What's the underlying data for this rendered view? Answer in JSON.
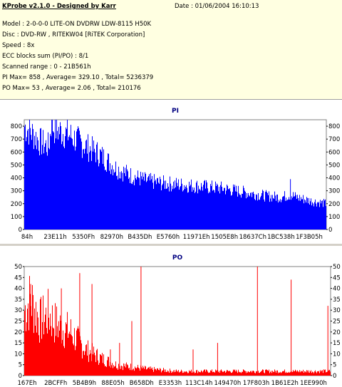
{
  "header": {
    "app_title": "KProbe v2.1.0 - Designed by Karr",
    "date": "Date : 01/06/2004 16:10:13",
    "model": "Model : 2-0-0-0 LITE-ON DVDRW LDW-8115   H50K",
    "disc": "Disc : DVD-RW , RITEKW04 [RiTEK Corporation]",
    "speed": "Speed : 8x",
    "ecc": "ECC blocks sum (PI/PO) : 8/1",
    "range": "Scanned range : 0 - 21B561h",
    "pi_stats": "PI Max= 858 , Average= 329.10 , Total= 5236379",
    "po_stats": "PO Max= 53 , Average= 2.06 , Total= 210176"
  },
  "colors": {
    "pi": "#0000ff",
    "po": "#ff0000",
    "title": "#000080",
    "header_bg": "#ffffe1"
  },
  "chart_data": [
    {
      "type": "area",
      "title": "PI",
      "ylim": [
        0,
        850
      ],
      "yticks": [
        0,
        100,
        200,
        300,
        400,
        500,
        600,
        700,
        800
      ],
      "xtick_labels": [
        "84h",
        "23E11h",
        "5350Fh",
        "82970h",
        "B435Dh",
        "E5760h",
        "11971Eh",
        "1505E8h",
        "18637Ch",
        "1BC538h",
        "1F3B05h"
      ],
      "x": [
        0,
        0.02,
        0.05,
        0.08,
        0.09,
        0.1,
        0.15,
        0.2,
        0.25,
        0.3,
        0.35,
        0.4,
        0.45,
        0.5,
        0.55,
        0.6,
        0.65,
        0.7,
        0.75,
        0.8,
        0.85,
        0.88,
        0.9,
        0.95,
        1.0
      ],
      "values": [
        800,
        760,
        680,
        640,
        820,
        780,
        730,
        650,
        580,
        480,
        420,
        380,
        360,
        350,
        340,
        330,
        320,
        300,
        280,
        260,
        250,
        270,
        250,
        220,
        200
      ],
      "spikes": [
        [
          0.09,
          858
        ],
        [
          0.38,
          400
        ],
        [
          0.45,
          390
        ],
        [
          0.88,
          390
        ]
      ]
    },
    {
      "type": "bar",
      "title": "PO",
      "ylim": [
        0,
        50
      ],
      "yticks": [
        0,
        5,
        10,
        15,
        20,
        25,
        30,
        35,
        40,
        45,
        50
      ],
      "xtick_labels": [
        "167Eh",
        "2BCFFh",
        "5B4B9h",
        "88E05h",
        "B658Dh",
        "E3353h",
        "113C14h",
        "149470h",
        "17F803h",
        "1B61E2h",
        "1EE990h"
      ],
      "x": [
        0,
        0.02,
        0.05,
        0.08,
        0.1,
        0.12,
        0.15,
        0.18,
        0.2,
        0.25,
        0.3,
        0.35,
        0.4,
        0.5,
        0.6,
        0.7,
        0.8,
        0.9,
        1.0
      ],
      "values": [
        30,
        35,
        25,
        28,
        24,
        22,
        20,
        15,
        12,
        8,
        5,
        4,
        3,
        2,
        2,
        2,
        2,
        2,
        2
      ],
      "spikes": [
        [
          0.02,
          42
        ],
        [
          0.12,
          40
        ],
        [
          0.18,
          47
        ],
        [
          0.22,
          42
        ],
        [
          0.28,
          12
        ],
        [
          0.31,
          15
        ],
        [
          0.35,
          25
        ],
        [
          0.38,
          53
        ],
        [
          0.55,
          12
        ],
        [
          0.63,
          15
        ],
        [
          0.76,
          50
        ],
        [
          0.87,
          44
        ],
        [
          0.99,
          32
        ]
      ]
    }
  ]
}
